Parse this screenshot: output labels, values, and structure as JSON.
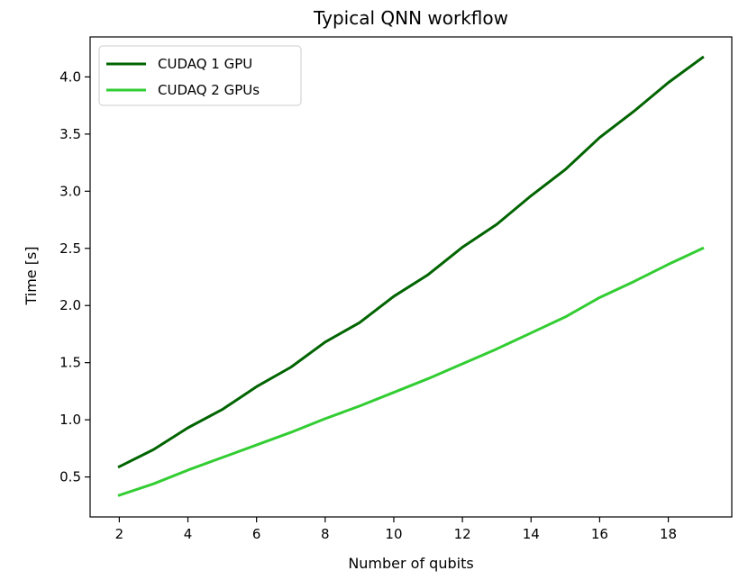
{
  "chart_data": {
    "type": "line",
    "title": "Typical QNN workflow",
    "xlabel": "Number of qubits",
    "ylabel": "Time [s]",
    "xlim": [
      1.15,
      19.85
    ],
    "ylim": [
      0.15,
      4.35
    ],
    "x_ticks": [
      2,
      4,
      6,
      8,
      10,
      12,
      14,
      16,
      18
    ],
    "y_ticks": [
      0.5,
      1.0,
      1.5,
      2.0,
      2.5,
      3.0,
      3.5,
      4.0
    ],
    "y_tick_labels": [
      "0.5",
      "1.0",
      "1.5",
      "2.0",
      "2.5",
      "3.0",
      "3.5",
      "4.0"
    ],
    "grid": false,
    "legend_position": "top-left",
    "x": [
      2,
      3,
      4,
      5,
      6,
      7,
      8,
      9,
      10,
      11,
      12,
      13,
      14,
      15,
      16,
      17,
      18,
      19
    ],
    "series": [
      {
        "name": "CUDAQ 1 GPU",
        "color": "#006400",
        "values": [
          0.59,
          0.74,
          0.93,
          1.09,
          1.29,
          1.46,
          1.68,
          1.85,
          2.08,
          2.27,
          2.51,
          2.71,
          2.96,
          3.19,
          3.47,
          3.7,
          3.95,
          4.17
        ]
      },
      {
        "name": "CUDAQ 2 GPUs",
        "color": "#32cd32",
        "values": [
          0.34,
          0.44,
          0.56,
          0.67,
          0.78,
          0.89,
          1.01,
          1.12,
          1.24,
          1.36,
          1.49,
          1.62,
          1.76,
          1.9,
          2.07,
          2.21,
          2.36,
          2.5
        ]
      }
    ]
  }
}
